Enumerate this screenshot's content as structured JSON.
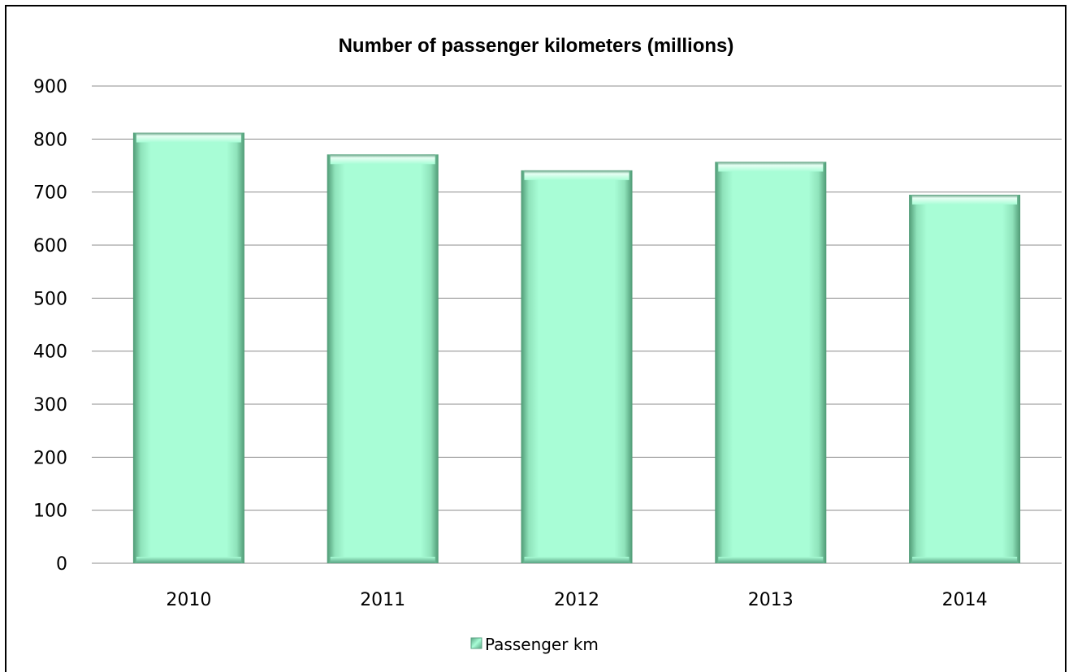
{
  "chart_data": {
    "type": "bar",
    "title": "Number of passenger kilometers (millions)",
    "xlabel": "",
    "ylabel": "",
    "categories": [
      "2010",
      "2011",
      "2012",
      "2013",
      "2014"
    ],
    "series": [
      {
        "name": "Passenger km",
        "values": [
          812,
          771,
          741,
          757,
          695
        ]
      }
    ],
    "ylim": [
      0,
      900
    ],
    "yticks": [
      "0",
      "100",
      "200",
      "300",
      "400",
      "500",
      "600",
      "700",
      "800",
      "900"
    ],
    "grid": true,
    "legend": "bottom",
    "colors": {
      "bar_fill": "#a8fdd6",
      "bar_edge": "#5fae88",
      "bar_highlight": "#e2fff1",
      "gridline": "#8c8c8c",
      "axis": "#8c8c8c"
    }
  }
}
